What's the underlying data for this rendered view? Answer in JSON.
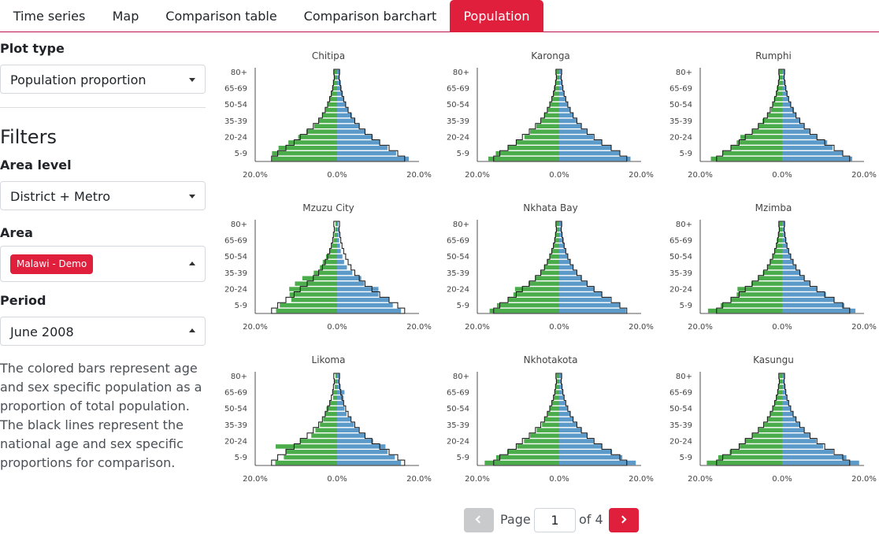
{
  "tabs": [
    {
      "label": "Time series"
    },
    {
      "label": "Map"
    },
    {
      "label": "Comparison table"
    },
    {
      "label": "Comparison barchart"
    },
    {
      "label": "Population"
    }
  ],
  "sidebar": {
    "plot_type_label": "Plot type",
    "plot_type_value": "Population proportion",
    "filters_title": "Filters",
    "area_level_label": "Area level",
    "area_level_value": "District + Metro",
    "area_label": "Area",
    "area_tag": "Malawi - Demo",
    "period_label": "Period",
    "period_value": "June 2008",
    "description": "The colored bars represent age and sex specific population as a proportion of total population. The black lines represent the national age and sex specific proportions for comparison."
  },
  "pager": {
    "page_label": "Page",
    "page_value": "1",
    "of_label": "of 4"
  },
  "colors": {
    "accent": "#e01f3d",
    "female": "#4aac4a",
    "male": "#5b9ac9",
    "national_line": "#111111"
  },
  "chart_data": {
    "type": "bar",
    "subtype": "population-pyramid",
    "age_groups": [
      "0-4",
      "5-9",
      "10-14",
      "15-19",
      "20-24",
      "25-29",
      "30-34",
      "35-39",
      "40-44",
      "45-49",
      "50-54",
      "55-59",
      "60-64",
      "65-69",
      "70-74",
      "75-79",
      "80+"
    ],
    "age_tick_labels": [
      "5-9",
      "20-24",
      "35-39",
      "50-54",
      "65-69",
      "80+"
    ],
    "x_tick_labels": [
      "20.0%",
      "0.0%",
      "20.0%"
    ],
    "xlim": [
      -20,
      20
    ],
    "national": {
      "female": [
        16.0,
        14.5,
        12.5,
        10.5,
        9.0,
        7.3,
        5.8,
        4.5,
        3.6,
        2.9,
        2.3,
        1.8,
        1.4,
        1.1,
        0.9,
        0.7,
        0.8
      ],
      "male": [
        16.5,
        14.8,
        12.7,
        10.4,
        8.5,
        6.8,
        5.4,
        4.3,
        3.4,
        2.7,
        2.1,
        1.6,
        1.2,
        0.9,
        0.7,
        0.5,
        0.6
      ]
    },
    "panels": [
      {
        "title": "Chitipa",
        "female": [
          15.9,
          15.9,
          14.3,
          11.9,
          9.5,
          7.5,
          5.6,
          4.5,
          3.6,
          2.8,
          2.3,
          1.9,
          1.5,
          1.2,
          0.9,
          0.8,
          0.9
        ],
        "male": [
          17.5,
          14.4,
          12.3,
          10.4,
          8.7,
          6.9,
          5.5,
          4.4,
          3.6,
          2.7,
          2.1,
          1.7,
          1.4,
          1.1,
          0.9,
          0.6,
          0.7
        ]
      },
      {
        "title": "Karonga",
        "female": [
          17.3,
          15.5,
          12.6,
          10.5,
          8.5,
          7.1,
          5.6,
          4.4,
          3.7,
          2.8,
          2.3,
          1.8,
          1.5,
          1.3,
          0.9,
          0.8,
          0.8
        ],
        "male": [
          17.4,
          14.9,
          12.6,
          10.4,
          8.3,
          6.7,
          5.3,
          4.3,
          3.4,
          2.7,
          2.0,
          1.6,
          1.2,
          0.9,
          0.7,
          0.5,
          0.6
        ]
      },
      {
        "title": "Rumphi",
        "female": [
          17.4,
          14.5,
          12.4,
          11.1,
          10.2,
          7.3,
          5.9,
          4.8,
          3.6,
          2.7,
          2.3,
          2.0,
          1.5,
          1.3,
          0.9,
          0.8,
          0.8
        ],
        "male": [
          17.1,
          14.9,
          12.3,
          11.0,
          8.6,
          6.8,
          5.4,
          4.4,
          3.4,
          2.9,
          2.2,
          1.6,
          1.3,
          1.0,
          0.8,
          0.6,
          0.7
        ]
      },
      {
        "title": "Mzuzu City",
        "female": [
          14.9,
          14.0,
          11.2,
          11.6,
          11.7,
          10.3,
          8.5,
          5.7,
          4.2,
          3.5,
          2.7,
          1.9,
          1.3,
          0.9,
          0.7,
          0.5,
          0.4
        ],
        "male": [
          15.6,
          13.6,
          12.6,
          10.1,
          10.1,
          6.6,
          5.9,
          3.7,
          2.4,
          1.7,
          1.3,
          0.9,
          0.7,
          0.5,
          0.5,
          0.4,
          0.3
        ]
      },
      {
        "title": "Nkhata Bay",
        "female": [
          17.0,
          15.2,
          12.6,
          11.2,
          10.8,
          7.5,
          5.9,
          4.6,
          3.7,
          3.0,
          2.4,
          1.9,
          1.5,
          1.2,
          1.0,
          0.8,
          0.8
        ],
        "male": [
          16.3,
          14.7,
          12.5,
          10.5,
          8.6,
          6.8,
          5.5,
          4.3,
          3.4,
          2.7,
          2.1,
          1.6,
          1.3,
          1.1,
          0.8,
          0.6,
          0.7
        ]
      },
      {
        "title": "Mzimba",
        "female": [
          18.1,
          15.0,
          12.6,
          11.1,
          10.9,
          7.5,
          5.9,
          4.7,
          3.6,
          3.0,
          2.3,
          1.9,
          1.4,
          1.3,
          1.0,
          0.8,
          0.8
        ],
        "male": [
          17.9,
          15.2,
          12.8,
          10.7,
          8.5,
          6.8,
          5.5,
          4.5,
          3.3,
          2.7,
          2.2,
          1.6,
          1.2,
          1.0,
          0.8,
          0.6,
          0.7
        ]
      },
      {
        "title": "Likoma",
        "female": [
          15.1,
          13.0,
          12.5,
          15.0,
          9.0,
          6.3,
          5.3,
          4.2,
          3.4,
          3.0,
          2.6,
          1.8,
          1.0,
          1.0,
          0.6,
          0.6,
          0.4
        ],
        "male": [
          15.6,
          14.1,
          12.3,
          11.8,
          8.8,
          6.8,
          5.3,
          4.1,
          3.3,
          2.3,
          1.8,
          1.6,
          1.6,
          1.8,
          0.8,
          0.6,
          0.6
        ]
      },
      {
        "title": "Nkhotakota",
        "female": [
          18.2,
          15.4,
          12.7,
          10.3,
          8.6,
          7.1,
          5.5,
          4.2,
          3.5,
          2.8,
          2.3,
          1.8,
          1.4,
          1.1,
          0.8,
          0.7,
          0.7
        ],
        "male": [
          18.7,
          15.4,
          12.9,
          10.5,
          8.4,
          6.8,
          5.4,
          4.3,
          3.4,
          2.7,
          2.0,
          1.5,
          1.2,
          0.9,
          0.7,
          0.5,
          0.6
        ]
      },
      {
        "title": "Kasungu",
        "female": [
          18.4,
          15.6,
          12.8,
          10.4,
          9.1,
          7.3,
          5.7,
          4.4,
          3.6,
          2.9,
          2.3,
          1.9,
          1.5,
          1.1,
          0.9,
          0.7,
          0.7
        ],
        "male": [
          18.8,
          15.7,
          12.5,
          10.0,
          8.3,
          6.7,
          5.4,
          4.3,
          3.4,
          2.6,
          2.0,
          1.6,
          1.2,
          0.9,
          0.7,
          0.5,
          0.6
        ]
      }
    ]
  }
}
